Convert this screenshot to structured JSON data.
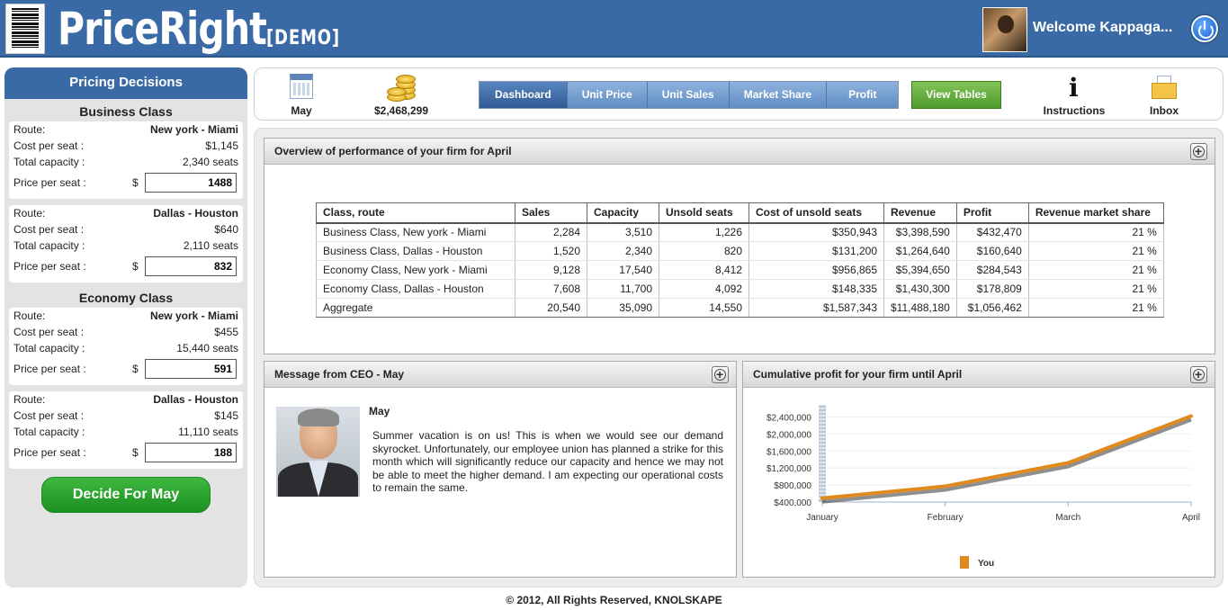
{
  "header": {
    "logo_text": "PriceRight",
    "logo_demo": "[DEMO]",
    "welcome": "Welcome Kappaga..."
  },
  "sidebar": {
    "title": "Pricing Decisions",
    "business_class": "Business Class",
    "economy_class": "Economy Class",
    "labels": {
      "route": "Route:",
      "cost": "Cost per seat :",
      "capacity": "Total capacity :",
      "price": "Price per seat :",
      "currency": "$"
    },
    "routes": [
      {
        "route": "New york - Miami",
        "cost": "$1,145",
        "capacity": "2,340 seats",
        "price": "1488"
      },
      {
        "route": "Dallas - Houston",
        "cost": "$640",
        "capacity": "2,110 seats",
        "price": "832"
      },
      {
        "route": "New york - Miami",
        "cost": "$455",
        "capacity": "15,440 seats",
        "price": "591"
      },
      {
        "route": "Dallas - Houston",
        "cost": "$145",
        "capacity": "11,110 seats",
        "price": "188"
      }
    ],
    "decide_button": "Decide For May"
  },
  "toolbar": {
    "month": "May",
    "cash": "$2,468,299",
    "tabs": [
      "Dashboard",
      "Unit Price",
      "Unit Sales",
      "Market Share",
      "Profit"
    ],
    "active_tab": "Dashboard",
    "view_tables": "View Tables",
    "instructions": "Instructions",
    "inbox": "Inbox"
  },
  "overview": {
    "title": "Overview of performance of your firm for April",
    "columns": [
      "Class, route",
      "Sales",
      "Capacity",
      "Unsold seats",
      "Cost of unsold seats",
      "Revenue",
      "Profit",
      "Revenue market share"
    ],
    "rows": [
      [
        "Business Class, New york - Miami",
        "2,284",
        "3,510",
        "1,226",
        "$350,943",
        "$3,398,590",
        "$432,470",
        "21 %"
      ],
      [
        "Business Class, Dallas - Houston",
        "1,520",
        "2,340",
        "820",
        "$131,200",
        "$1,264,640",
        "$160,640",
        "21 %"
      ],
      [
        "Economy Class, New york - Miami",
        "9,128",
        "17,540",
        "8,412",
        "$956,865",
        "$5,394,650",
        "$284,543",
        "21 %"
      ],
      [
        "Economy Class, Dallas - Houston",
        "7,608",
        "11,700",
        "4,092",
        "$148,335",
        "$1,430,300",
        "$178,809",
        "21 %"
      ],
      [
        "Aggregate",
        "20,540",
        "35,090",
        "14,550",
        "$1,587,343",
        "$11,488,180",
        "$1,056,462",
        "21 %"
      ]
    ]
  },
  "ceo": {
    "title": "Message from CEO - May",
    "month": "May",
    "message": "Summer vacation is on us! This is when we would see our demand skyrocket. Unfortunately, our employee union has planned a strike for this month which will significantly reduce our capacity and hence we may not be able to meet the higher demand. I am expecting our operational costs to remain the same."
  },
  "chart_panel": {
    "title": "Cumulative profit for your firm until April"
  },
  "chart_data": {
    "type": "line",
    "categories": [
      "January",
      "February",
      "March",
      "April"
    ],
    "series": [
      {
        "name": "You",
        "values": [
          490000,
          770000,
          1320000,
          2420000
        ],
        "color": "#e08a1e"
      }
    ],
    "ylim": [
      400000,
      2600000
    ],
    "yticks": [
      400000,
      800000,
      1200000,
      1600000,
      2000000,
      2400000
    ],
    "ytick_labels": [
      "$400,000",
      "$800,000",
      "$1,200,000",
      "$1,600,000",
      "$2,000,000",
      "$2,400,000"
    ],
    "grid": true,
    "legend": "bottom"
  },
  "footer": "© 2012, All Rights Reserved, KNOLSKAPE"
}
